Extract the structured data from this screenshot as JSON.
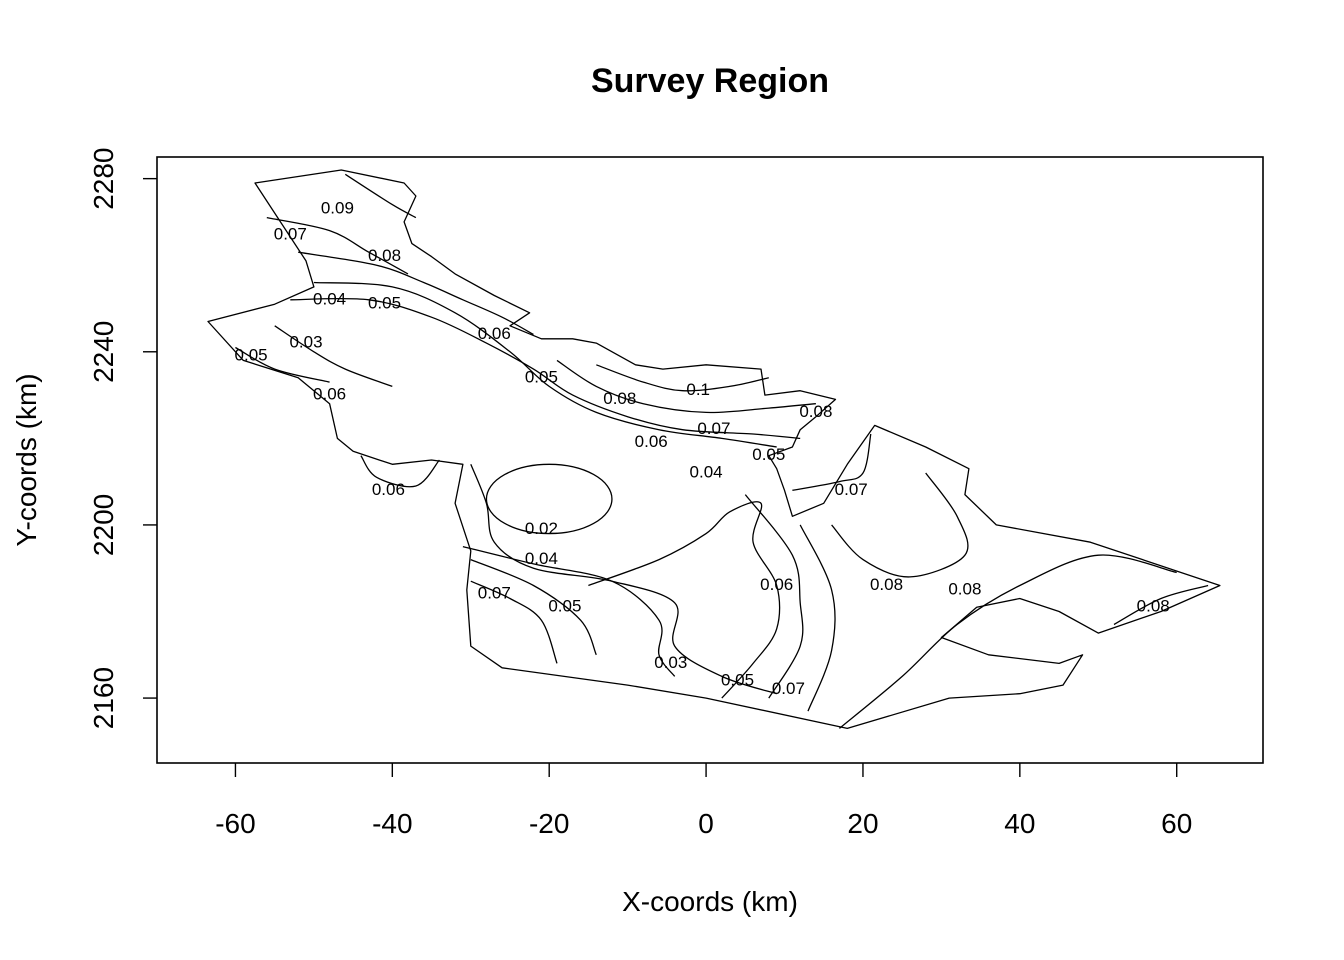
{
  "chart_data": {
    "type": "contour",
    "title": "Survey Region",
    "xlabel": "X-coords (km)",
    "ylabel": "Y-coords (km)",
    "xlim": [
      -70,
      71
    ],
    "ylim": [
      2145,
      2285
    ],
    "x_ticks": [
      -60,
      -40,
      -20,
      0,
      20,
      40,
      60
    ],
    "y_ticks": [
      2160,
      2200,
      2240,
      2280
    ],
    "x_tick_labels": [
      "-60",
      "-40",
      "-20",
      "0",
      "20",
      "40",
      "60"
    ],
    "y_tick_labels": [
      "2160",
      "2200",
      "2240",
      "2280"
    ],
    "grid": false,
    "region_outline": [
      [
        -57.5,
        2279
      ],
      [
        -46.5,
        2282
      ],
      [
        -38.5,
        2279
      ],
      [
        -37,
        2276
      ],
      [
        -38.5,
        2270
      ],
      [
        -37.5,
        2265
      ],
      [
        -35,
        2262
      ],
      [
        -32,
        2258
      ],
      [
        -27,
        2253
      ],
      [
        -22.5,
        2249
      ],
      [
        -25,
        2246
      ],
      [
        -21,
        2243
      ],
      [
        -17,
        2243
      ],
      [
        -14,
        2242
      ],
      [
        -9,
        2237
      ],
      [
        -5.5,
        2236
      ],
      [
        0,
        2237
      ],
      [
        7,
        2236
      ],
      [
        7.5,
        2230
      ],
      [
        12,
        2231
      ],
      [
        16.5,
        2229
      ],
      [
        14,
        2225
      ],
      [
        12,
        2222
      ],
      [
        11,
        2218
      ],
      [
        8,
        2216
      ],
      [
        9,
        2213
      ],
      [
        10,
        2208
      ],
      [
        11,
        2202
      ],
      [
        15,
        2205
      ],
      [
        18,
        2214
      ],
      [
        21.5,
        2223
      ],
      [
        28,
        2218
      ],
      [
        33.5,
        2213
      ],
      [
        33,
        2207
      ],
      [
        37,
        2200
      ],
      [
        49,
        2196
      ],
      [
        65.5,
        2186
      ],
      [
        58,
        2180
      ],
      [
        50,
        2175
      ],
      [
        45,
        2180
      ],
      [
        40,
        2183
      ],
      [
        34.5,
        2181
      ],
      [
        30,
        2174
      ],
      [
        36,
        2170
      ],
      [
        45,
        2168
      ],
      [
        48,
        2170
      ],
      [
        45.5,
        2163
      ],
      [
        40,
        2161
      ],
      [
        31,
        2160
      ],
      [
        18,
        2153
      ],
      [
        0,
        2160
      ],
      [
        -10,
        2163
      ],
      [
        -26,
        2167
      ],
      [
        -30,
        2172
      ],
      [
        -30.5,
        2185
      ],
      [
        -30,
        2194
      ],
      [
        -32,
        2205
      ],
      [
        -31,
        2214
      ],
      [
        -35,
        2215
      ],
      [
        -40,
        2214
      ],
      [
        -45,
        2217
      ],
      [
        -47,
        2220
      ],
      [
        -48,
        2228
      ],
      [
        -52,
        2234
      ],
      [
        -59,
        2238
      ],
      [
        -63.5,
        2247
      ],
      [
        -55,
        2251
      ],
      [
        -50,
        2255
      ],
      [
        -51,
        2261
      ],
      [
        -57.5,
        2279
      ]
    ],
    "contour_labels": [
      {
        "value": "0.09",
        "x": -47,
        "y": 2273
      },
      {
        "value": "0.07",
        "x": -53,
        "y": 2267
      },
      {
        "value": "0.08",
        "x": -41,
        "y": 2262
      },
      {
        "value": "0.04",
        "x": -48,
        "y": 2252
      },
      {
        "value": "0.05",
        "x": -41,
        "y": 2251
      },
      {
        "value": "0.06",
        "x": -27,
        "y": 2244
      },
      {
        "value": "0.03",
        "x": -51,
        "y": 2242
      },
      {
        "value": "0.05",
        "x": -58,
        "y": 2239
      },
      {
        "value": "0.06",
        "x": -48,
        "y": 2230
      },
      {
        "value": "0.05",
        "x": -21,
        "y": 2234
      },
      {
        "value": "0.08",
        "x": -11,
        "y": 2229
      },
      {
        "value": "0.1",
        "x": -1,
        "y": 2231
      },
      {
        "value": "0.08",
        "x": 14,
        "y": 2226
      },
      {
        "value": "0.07",
        "x": 1,
        "y": 2222
      },
      {
        "value": "0.06",
        "x": -7,
        "y": 2219
      },
      {
        "value": "0.05",
        "x": 8,
        "y": 2216
      },
      {
        "value": "0.04",
        "x": 0,
        "y": 2212
      },
      {
        "value": "0.06",
        "x": -40.5,
        "y": 2208
      },
      {
        "value": "0.07",
        "x": 18.5,
        "y": 2208
      },
      {
        "value": "0.02",
        "x": -21,
        "y": 2199
      },
      {
        "value": "0.04",
        "x": -21,
        "y": 2192
      },
      {
        "value": "0.08",
        "x": 23,
        "y": 2186
      },
      {
        "value": "0.08",
        "x": 33,
        "y": 2185
      },
      {
        "value": "0.07",
        "x": -27,
        "y": 2184
      },
      {
        "value": "0.06",
        "x": 9,
        "y": 2186
      },
      {
        "value": "0.05",
        "x": -18,
        "y": 2181
      },
      {
        "value": "0.08",
        "x": 57,
        "y": 2181
      },
      {
        "value": "0.03",
        "x": -4.5,
        "y": 2168
      },
      {
        "value": "0.05",
        "x": 4,
        "y": 2164
      },
      {
        "value": "0.07",
        "x": 10.5,
        "y": 2162
      }
    ],
    "contour_lines": [
      {
        "points": [
          [
            -46,
            2281
          ],
          [
            -40,
            2274
          ],
          [
            -37,
            2271
          ]
        ]
      },
      {
        "points": [
          [
            -56,
            2271
          ],
          [
            -48,
            2268
          ],
          [
            -43,
            2263
          ],
          [
            -38,
            2258
          ]
        ]
      },
      {
        "points": [
          [
            -52,
            2263
          ],
          [
            -42,
            2260
          ],
          [
            -36,
            2256
          ],
          [
            -31,
            2252
          ],
          [
            -26,
            2248
          ],
          [
            -22,
            2244
          ]
        ]
      },
      {
        "points": [
          [
            -53,
            2252
          ],
          [
            -43,
            2252
          ],
          [
            -35,
            2248
          ],
          [
            -28,
            2242
          ],
          [
            -22,
            2236
          ],
          [
            -17,
            2230
          ],
          [
            -10,
            2225
          ],
          [
            -3,
            2222
          ],
          [
            6,
            2221
          ],
          [
            12,
            2220
          ]
        ]
      },
      {
        "points": [
          [
            -50,
            2256
          ],
          [
            -40,
            2255
          ],
          [
            -32,
            2249
          ],
          [
            -25,
            2240
          ],
          [
            -20,
            2232
          ],
          [
            -14,
            2226
          ],
          [
            -6,
            2222
          ],
          [
            2,
            2220
          ],
          [
            9,
            2218
          ]
        ]
      },
      {
        "points": [
          [
            -19,
            2238
          ],
          [
            -14,
            2232
          ],
          [
            -8,
            2228
          ],
          [
            0,
            2226
          ],
          [
            8,
            2227
          ],
          [
            14,
            2228
          ]
        ]
      },
      {
        "points": [
          [
            -14,
            2237
          ],
          [
            -8,
            2233
          ],
          [
            -3,
            2231
          ],
          [
            3,
            2232
          ],
          [
            8,
            2234
          ]
        ]
      },
      {
        "points": [
          [
            -55,
            2246
          ],
          [
            -50,
            2240
          ],
          [
            -46,
            2236
          ],
          [
            -40,
            2232
          ]
        ]
      },
      {
        "points": [
          [
            -60,
            2241
          ],
          [
            -55,
            2236
          ],
          [
            -48,
            2233
          ]
        ]
      },
      {
        "points": [
          [
            -30,
            2214
          ],
          [
            -28,
            2205
          ],
          [
            -27,
            2196
          ],
          [
            -22,
            2190
          ],
          [
            -12,
            2187
          ],
          [
            -4,
            2182
          ],
          [
            -4,
            2172
          ],
          [
            2,
            2165
          ],
          [
            9,
            2161
          ]
        ]
      },
      {
        "points": [
          [
            -30,
            2187
          ],
          [
            -25,
            2183
          ],
          [
            -21,
            2178
          ],
          [
            -19,
            2168
          ]
        ]
      },
      {
        "points": [
          [
            -30,
            2192
          ],
          [
            -22,
            2186
          ],
          [
            -16,
            2178
          ],
          [
            -14,
            2170
          ]
        ]
      },
      {
        "points": [
          [
            -31,
            2195
          ],
          [
            -22,
            2191
          ],
          [
            -12,
            2187
          ],
          [
            -6,
            2178
          ],
          [
            -6,
            2170
          ],
          [
            -4,
            2165
          ]
        ]
      },
      {
        "points": [
          [
            -15,
            2186
          ],
          [
            -6,
            2192
          ],
          [
            0,
            2198
          ],
          [
            3,
            2203
          ],
          [
            7,
            2205
          ],
          [
            6,
            2196
          ],
          [
            9,
            2186
          ],
          [
            9,
            2176
          ],
          [
            6,
            2168
          ],
          [
            2,
            2160
          ]
        ]
      },
      {
        "points": [
          [
            5,
            2207
          ],
          [
            11,
            2193
          ],
          [
            12,
            2182
          ],
          [
            12,
            2172
          ],
          [
            8,
            2160
          ]
        ]
      },
      {
        "points": [
          [
            12,
            2200
          ],
          [
            16,
            2185
          ],
          [
            16,
            2171
          ],
          [
            13,
            2157
          ]
        ]
      },
      {
        "points": [
          [
            11,
            2208
          ],
          [
            17,
            2210
          ],
          [
            20,
            2212
          ],
          [
            21,
            2221
          ]
        ]
      },
      {
        "points": [
          [
            16,
            2200
          ],
          [
            20,
            2192
          ],
          [
            26,
            2188
          ],
          [
            33,
            2193
          ],
          [
            32,
            2202
          ],
          [
            28,
            2212
          ]
        ]
      },
      {
        "points": [
          [
            17,
            2153
          ],
          [
            25,
            2165
          ],
          [
            32,
            2177
          ],
          [
            40,
            2186
          ],
          [
            50,
            2193
          ],
          [
            60,
            2189
          ]
        ]
      },
      {
        "points": [
          [
            52,
            2177
          ],
          [
            58,
            2183
          ],
          [
            64,
            2186
          ]
        ]
      },
      {
        "points": [
          [
            -44,
            2216
          ],
          [
            -42,
            2211
          ],
          [
            -37,
            2209
          ],
          [
            -34,
            2215
          ]
        ]
      }
    ],
    "contour_rings": [
      {
        "cx": -20,
        "cy": 2206,
        "rx": 8,
        "ry": 8
      }
    ]
  }
}
